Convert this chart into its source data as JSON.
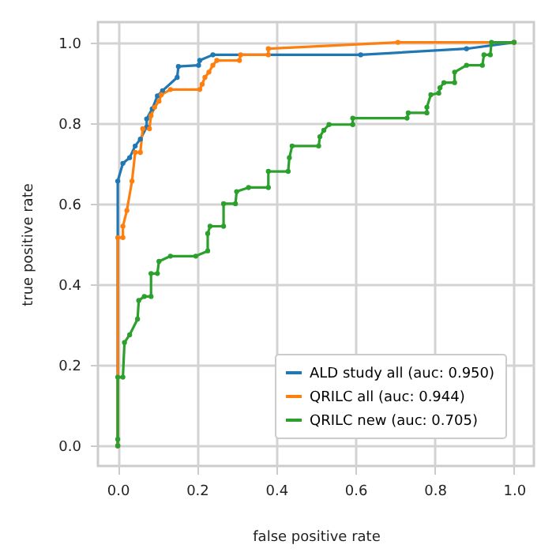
{
  "chart_data": {
    "type": "line",
    "xlabel": "false positive rate",
    "ylabel": "true positive rate",
    "xlim": [
      -0.05,
      1.05
    ],
    "ylim": [
      -0.05,
      1.05
    ],
    "xticks": [
      {
        "value": 0,
        "label": "0.0"
      },
      0.2,
      0.4,
      0.6,
      0.8,
      {
        "value": 1,
        "label": "1.0"
      }
    ],
    "yticks": [
      {
        "value": 0,
        "label": "0.0"
      },
      0.2,
      0.4,
      0.6,
      0.8,
      {
        "value": 1,
        "label": "1.0"
      }
    ],
    "grid": true,
    "legend": "bottom right",
    "marker": "circle",
    "line_style": "solid",
    "series": [
      {
        "name": "ALD study all (auc: 0.950)",
        "color": "#1f77b4",
        "x": [
          0,
          0,
          0.013,
          0.03,
          0.044,
          0.057,
          0.073,
          0.073,
          0.087,
          0.1,
          0.113,
          0.15,
          0.153,
          0.204,
          0.207,
          0.24,
          0.613,
          0.88,
          1
        ],
        "values": [
          0,
          0.656,
          0.7,
          0.714,
          0.743,
          0.76,
          0.79,
          0.81,
          0.835,
          0.867,
          0.88,
          0.913,
          0.94,
          0.943,
          0.955,
          0.969,
          0.969,
          0.984,
          1
        ]
      },
      {
        "name": "QRILC all (auc: 0.944)",
        "color": "#ff7f0e",
        "x": [
          0,
          0,
          0.013,
          0.013,
          0.023,
          0.036,
          0.044,
          0.057,
          0.063,
          0.08,
          0.084,
          0.093,
          0.104,
          0.11,
          0.133,
          0.207,
          0.213,
          0.22,
          0.23,
          0.24,
          0.25,
          0.307,
          0.31,
          0.38,
          0.38,
          0.707,
          1
        ],
        "values": [
          0,
          0.516,
          0.516,
          0.544,
          0.583,
          0.656,
          0.727,
          0.727,
          0.786,
          0.786,
          0.818,
          0.839,
          0.854,
          0.87,
          0.883,
          0.883,
          0.896,
          0.913,
          0.926,
          0.943,
          0.955,
          0.955,
          0.969,
          0.969,
          0.984,
          1,
          1
        ]
      },
      {
        "name": "QRILC new (auc: 0.705)",
        "color": "#2ca02c",
        "x": [
          0,
          0,
          0,
          0.013,
          0.017,
          0.03,
          0.05,
          0.053,
          0.067,
          0.084,
          0.084,
          0.1,
          0.104,
          0.133,
          0.197,
          0.227,
          0.227,
          0.233,
          0.267,
          0.267,
          0.297,
          0.3,
          0.33,
          0.38,
          0.38,
          0.43,
          0.433,
          0.44,
          0.507,
          0.51,
          0.52,
          0.533,
          0.593,
          0.593,
          0.73,
          0.733,
          0.78,
          0.78,
          0.79,
          0.81,
          0.813,
          0.823,
          0.85,
          0.85,
          0.88,
          0.92,
          0.924,
          0.94,
          0.943,
          1
        ],
        "values": [
          0,
          0.016,
          0.17,
          0.17,
          0.256,
          0.275,
          0.314,
          0.36,
          0.37,
          0.37,
          0.427,
          0.427,
          0.457,
          0.47,
          0.47,
          0.483,
          0.526,
          0.544,
          0.544,
          0.6,
          0.6,
          0.63,
          0.64,
          0.64,
          0.68,
          0.68,
          0.714,
          0.743,
          0.743,
          0.766,
          0.782,
          0.796,
          0.796,
          0.812,
          0.812,
          0.825,
          0.825,
          0.839,
          0.87,
          0.874,
          0.887,
          0.9,
          0.9,
          0.926,
          0.943,
          0.943,
          0.969,
          0.969,
          1,
          1
        ]
      }
    ]
  }
}
